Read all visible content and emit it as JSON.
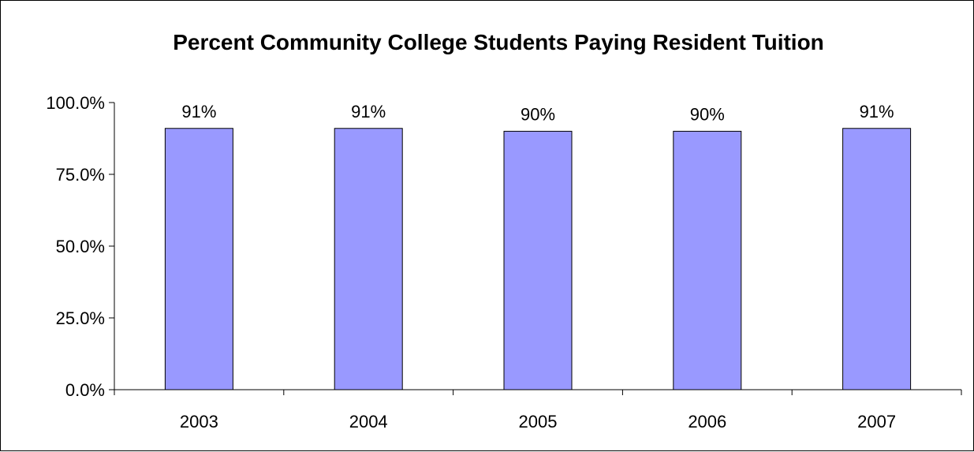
{
  "chart_data": {
    "type": "bar",
    "title": "Percent Community College Students Paying Resident Tuition",
    "xlabel": "",
    "ylabel": "",
    "categories": [
      "2003",
      "2004",
      "2005",
      "2006",
      "2007"
    ],
    "values": [
      91,
      91,
      90,
      90,
      91
    ],
    "data_labels": [
      "91%",
      "91%",
      "90%",
      "90%",
      "91%"
    ],
    "ylim": [
      0,
      100
    ],
    "y_ticks": [
      0,
      25,
      50,
      75,
      100
    ],
    "y_tick_labels": [
      "0.0%",
      "25.0%",
      "50.0%",
      "75.0%",
      "100.0%"
    ],
    "grid": false,
    "legend": "none",
    "colors": {
      "bar": "#9999ff",
      "bar_stroke": "#000000",
      "axis": "#000000"
    }
  }
}
